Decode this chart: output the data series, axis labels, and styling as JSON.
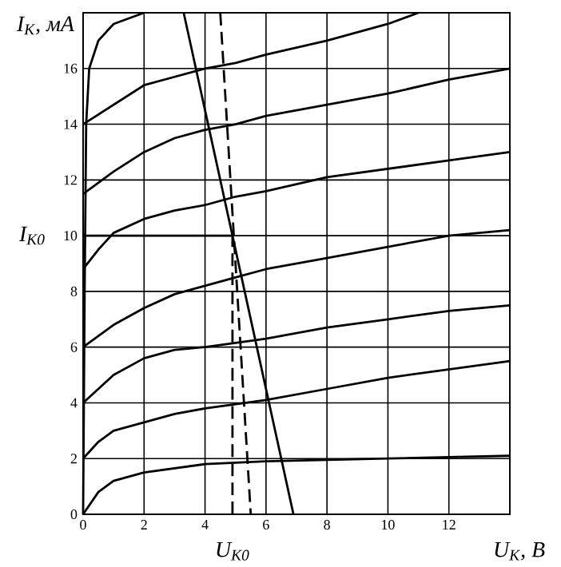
{
  "chart_data": {
    "type": "line",
    "xlabel": "U$_{К}$, В",
    "ylabel": "I$_{К}$, мА",
    "xlim": [
      0,
      14
    ],
    "ylim": [
      0,
      18
    ],
    "xticks": [
      0,
      2,
      4,
      6,
      8,
      10,
      12,
      {
        "value": 14,
        "label": null
      }
    ],
    "yticks": [
      0,
      2,
      4,
      6,
      8,
      10,
      12,
      14,
      16,
      {
        "value": 18,
        "label": null
      }
    ],
    "grid": true,
    "marker": "none",
    "line_style": "solid",
    "annotations": [
      {
        "text": "I$_{К0}$",
        "x": 0,
        "y": 10
      },
      {
        "text": "U$_{К0}$",
        "x": 4.9,
        "y": 0
      }
    ],
    "series": [
      {
        "color": "#000000",
        "x": [
          0,
          0.5,
          1,
          2,
          4,
          6,
          10,
          14
        ],
        "values": [
          0,
          0.8,
          1.2,
          1.5,
          1.8,
          1.9,
          2.0,
          2.1
        ]
      },
      {
        "color": "#000000",
        "x": [
          0,
          0.5,
          1,
          2,
          3,
          4,
          6,
          8,
          10,
          12,
          14
        ],
        "values": [
          2,
          2.6,
          3,
          3.3,
          3.6,
          3.8,
          4.1,
          4.5,
          4.9,
          5.2,
          5.5
        ]
      },
      {
        "color": "#000000",
        "x": [
          0,
          1,
          2,
          3,
          4,
          6,
          8,
          10,
          12,
          14
        ],
        "values": [
          4,
          5,
          5.6,
          5.9,
          6.0,
          6.3,
          6.7,
          7.0,
          7.3,
          7.5
        ]
      },
      {
        "color": "#000000",
        "x": [
          0,
          1,
          2,
          3,
          4,
          5,
          6,
          8,
          10,
          12,
          14
        ],
        "values": [
          6,
          6.8,
          7.4,
          7.9,
          8.2,
          8.5,
          8.8,
          9.2,
          9.6,
          10,
          10.2
        ]
      },
      {
        "color": "#000000",
        "x": [
          0,
          0.5,
          1,
          2,
          3,
          4,
          5,
          6,
          8,
          10,
          12,
          14
        ],
        "values": [
          8.8,
          9.5,
          10.1,
          10.6,
          10.9,
          11.1,
          11.4,
          11.6,
          12.1,
          12.4,
          12.7,
          13.0
        ]
      },
      {
        "color": "#000000",
        "x": [
          0,
          1,
          2,
          3,
          4,
          5,
          6,
          8,
          10,
          12,
          14
        ],
        "values": [
          11.5,
          12.3,
          13.0,
          13.5,
          13.8,
          14.0,
          14.3,
          14.7,
          15.1,
          15.6,
          16.0
        ]
      },
      {
        "color": "#000000",
        "x": [
          0,
          1,
          2,
          3,
          4,
          5,
          6,
          8,
          10,
          11
        ],
        "values": [
          14,
          14.7,
          15.4,
          15.7,
          16.0,
          16.2,
          16.5,
          17.0,
          17.6,
          18
        ]
      },
      {
        "color": "#000000",
        "x": [
          0,
          0.05,
          0.1,
          0.2,
          0.5,
          1,
          2
        ],
        "values": [
          0,
          8,
          14,
          16,
          17,
          17.6,
          18
        ]
      },
      {
        "color": "#000000",
        "x": [
          3.3,
          6.9
        ],
        "values": [
          18,
          0
        ]
      },
      {
        "color": "#000000",
        "x": [
          0,
          4.9
        ],
        "values": [
          10,
          10
        ]
      },
      {
        "color": "#000000",
        "line_style": "dashed",
        "x": [
          4.9,
          4.9
        ],
        "values": [
          0,
          10
        ]
      },
      {
        "color": "#000000",
        "line_style": "dashed",
        "x": [
          4.5,
          5.5
        ],
        "values": [
          18,
          0
        ]
      }
    ]
  }
}
